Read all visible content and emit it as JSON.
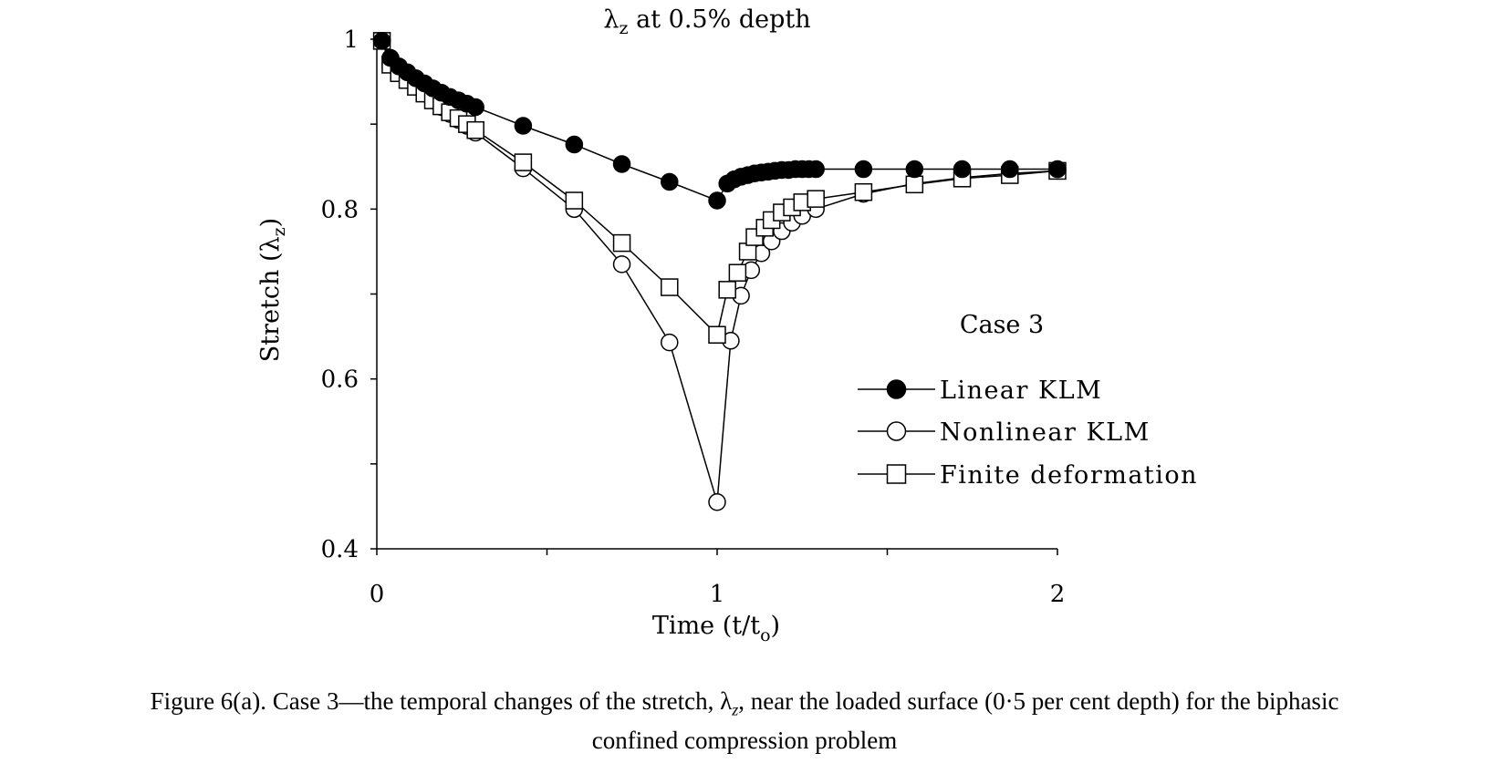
{
  "chart_data": {
    "type": "line",
    "title_main": "λ",
    "title_sub": "z",
    "title_rest": " at 0.5% depth",
    "xlabel_main": "Time (t/t",
    "xlabel_sub": "o",
    "xlabel_rest": ")",
    "ylabel_main": "Stretch (λ",
    "ylabel_sub": "z",
    "ylabel_rest": ")",
    "xlim": [
      0,
      2
    ],
    "ylim": [
      0.4,
      1.0
    ],
    "x_ticks": [
      0,
      0.5,
      1,
      1.5,
      2
    ],
    "x_tick_labels": [
      "0",
      "",
      "1",
      "",
      "2"
    ],
    "y_ticks": [
      0.4,
      0.5,
      0.6,
      0.7,
      0.8,
      0.9,
      1.0
    ],
    "y_tick_labels": [
      "0.4",
      "",
      "0.6",
      "",
      "0.8",
      "",
      "1"
    ],
    "grid": false,
    "legend_title": "Case 3",
    "legend_position": "right",
    "series": [
      {
        "name": "Linear KLM",
        "marker": "filled-circle",
        "x": [
          0.015,
          0.04,
          0.065,
          0.09,
          0.115,
          0.14,
          0.165,
          0.19,
          0.215,
          0.24,
          0.265,
          0.29,
          0.43,
          0.58,
          0.72,
          0.86,
          1.0,
          1.03,
          1.05,
          1.07,
          1.09,
          1.11,
          1.13,
          1.15,
          1.17,
          1.19,
          1.21,
          1.23,
          1.25,
          1.27,
          1.29,
          1.43,
          1.58,
          1.72,
          1.86,
          2.0
        ],
        "y": [
          0.998,
          0.978,
          0.968,
          0.961,
          0.954,
          0.948,
          0.942,
          0.937,
          0.932,
          0.928,
          0.924,
          0.92,
          0.898,
          0.876,
          0.853,
          0.832,
          0.81,
          0.83,
          0.835,
          0.838,
          0.84,
          0.842,
          0.843,
          0.844,
          0.845,
          0.846,
          0.846,
          0.847,
          0.847,
          0.847,
          0.847,
          0.847,
          0.847,
          0.847,
          0.847,
          0.847
        ]
      },
      {
        "name": "Nonlinear KLM",
        "marker": "open-circle",
        "x": [
          0.015,
          0.04,
          0.065,
          0.09,
          0.115,
          0.14,
          0.165,
          0.19,
          0.215,
          0.24,
          0.265,
          0.29,
          0.43,
          0.58,
          0.72,
          0.86,
          1.0,
          1.04,
          1.07,
          1.1,
          1.13,
          1.16,
          1.19,
          1.22,
          1.25,
          1.29,
          1.43,
          1.58,
          1.72,
          1.86,
          2.0
        ],
        "y": [
          0.998,
          0.97,
          0.96,
          0.952,
          0.944,
          0.936,
          0.928,
          0.92,
          0.912,
          0.905,
          0.898,
          0.89,
          0.848,
          0.8,
          0.735,
          0.643,
          0.455,
          0.645,
          0.698,
          0.728,
          0.748,
          0.762,
          0.774,
          0.784,
          0.792,
          0.8,
          0.818,
          0.83,
          0.837,
          0.842,
          0.845
        ]
      },
      {
        "name": "Finite deformation",
        "marker": "open-square",
        "x": [
          0.015,
          0.04,
          0.065,
          0.09,
          0.115,
          0.14,
          0.165,
          0.19,
          0.215,
          0.24,
          0.265,
          0.29,
          0.43,
          0.58,
          0.72,
          0.86,
          1.0,
          1.03,
          1.06,
          1.09,
          1.11,
          1.14,
          1.16,
          1.19,
          1.22,
          1.25,
          1.29,
          1.43,
          1.58,
          1.72,
          1.86,
          2.0
        ],
        "y": [
          0.998,
          0.97,
          0.96,
          0.952,
          0.944,
          0.936,
          0.928,
          0.921,
          0.914,
          0.907,
          0.9,
          0.893,
          0.855,
          0.81,
          0.76,
          0.708,
          0.652,
          0.705,
          0.725,
          0.75,
          0.767,
          0.778,
          0.787,
          0.796,
          0.802,
          0.808,
          0.812,
          0.82,
          0.829,
          0.836,
          0.84,
          0.845
        ]
      }
    ]
  },
  "caption": {
    "line1": "Figure 6(a).  Case 3—the temporal changes of the stretch, λ",
    "line1_sub": "z",
    "line1_rest": ", near the loaded surface (0·5 per cent depth) for the biphasic",
    "line2": "confined compression problem"
  }
}
